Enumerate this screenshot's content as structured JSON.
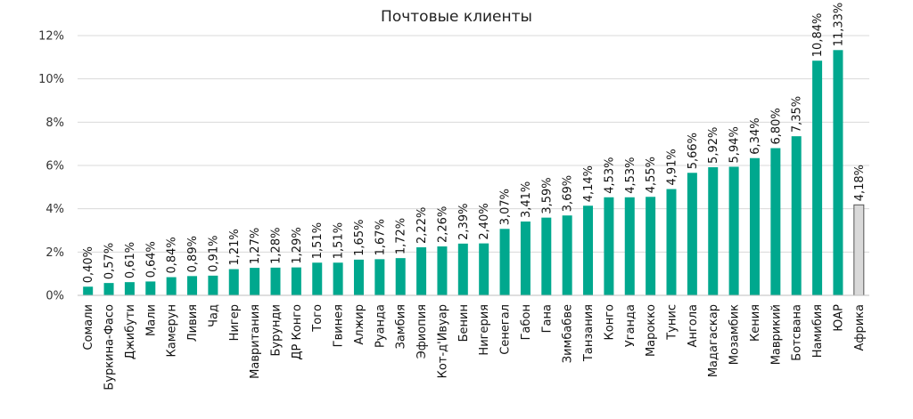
{
  "chart_data": {
    "type": "bar",
    "title": "Почтовые клиенты",
    "categories": [
      "Сомали",
      "Буркина-Фасо",
      "Джибути",
      "Мали",
      "Камерун",
      "Ливия",
      "Чад",
      "Нигер",
      "Мавритания",
      "Бурунди",
      "ДР Конго",
      "Того",
      "Гвинея",
      "Алжир",
      "Руанда",
      "Замбия",
      "Эфиопия",
      "Кот-д'Ивуар",
      "Бенин",
      "Нигерия",
      "Сенегал",
      "Габон",
      "Гана",
      "Зимбабве",
      "Танзания",
      "Конго",
      "Уганда",
      "Марокко",
      "Тунис",
      "Ангола",
      "Мадагаскар",
      "Мозамбик",
      "Кения",
      "Маврикий",
      "Ботсвана",
      "Намибия",
      "ЮАР",
      "Африка"
    ],
    "values": [
      0.4,
      0.57,
      0.61,
      0.64,
      0.84,
      0.89,
      0.91,
      1.21,
      1.27,
      1.28,
      1.29,
      1.51,
      1.51,
      1.65,
      1.67,
      1.72,
      2.22,
      2.26,
      2.39,
      2.4,
      3.07,
      3.41,
      3.59,
      3.69,
      4.14,
      4.53,
      4.53,
      4.55,
      4.91,
      5.66,
      5.92,
      5.94,
      6.34,
      6.8,
      7.35,
      10.84,
      11.33,
      4.18
    ],
    "data_labels": [
      "0,40%",
      "0,57%",
      "0,61%",
      "0,64%",
      "0,84%",
      "0,89%",
      "0,91%",
      "1,21%",
      "1,27%",
      "1,28%",
      "1,29%",
      "1,51%",
      "1,51%",
      "1,65%",
      "1,67%",
      "1,72%",
      "2,22%",
      "2,26%",
      "2,39%",
      "2,40%",
      "3,07%",
      "3,41%",
      "3,59%",
      "3,69%",
      "4,14%",
      "4,53%",
      "4,53%",
      "4,55%",
      "4,91%",
      "5,66%",
      "5,92%",
      "5,94%",
      "6,34%",
      "6,80%",
      "7,35%",
      "10,84%",
      "11,33%",
      "4,18%"
    ],
    "ylim": [
      0,
      12
    ],
    "yticks": [
      0,
      2,
      4,
      6,
      8,
      10,
      12
    ],
    "ytick_labels": [
      "0%",
      "2%",
      "4%",
      "6%",
      "8%",
      "10%",
      "12%"
    ],
    "grid": true,
    "colors": {
      "bar": "#00A88E",
      "highlight_bar": "#D9D9D9",
      "highlight_border": "#555555",
      "grid": "#D9D9D9"
    },
    "highlight_category": "Африка"
  }
}
